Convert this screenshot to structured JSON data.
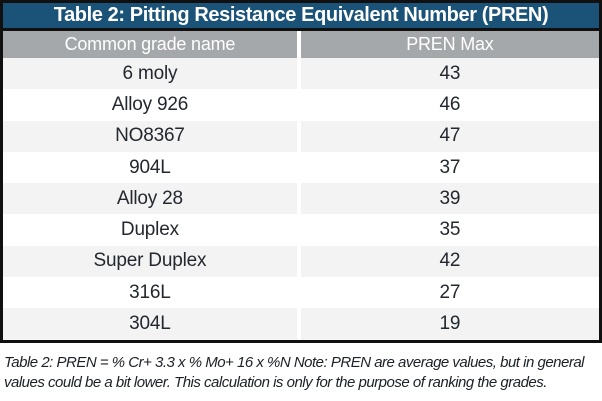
{
  "table": {
    "title": "Table 2: Pitting Resistance Equivalent Number (PREN)",
    "columns": [
      "Common grade name",
      "PREN Max"
    ],
    "rows": [
      {
        "grade": "6 moly",
        "pren_max": "43"
      },
      {
        "grade": "Alloy 926",
        "pren_max": "46"
      },
      {
        "grade": "NO8367",
        "pren_max": "47"
      },
      {
        "grade": "904L",
        "pren_max": "37"
      },
      {
        "grade": "Alloy 28",
        "pren_max": "39"
      },
      {
        "grade": "Duplex",
        "pren_max": "35"
      },
      {
        "grade": "Super Duplex",
        "pren_max": "42"
      },
      {
        "grade": "316L",
        "pren_max": "27"
      },
      {
        "grade": "304L",
        "pren_max": "19"
      }
    ]
  },
  "caption": {
    "lines": [
      "Table 2: PREN = % Cr+ 3.3 x % Mo+ 16 x %N  Note: PREN are average values, but in general",
      "values could be a bit lower. This calculation is only for the purpose of ranking the grades."
    ]
  },
  "colors": {
    "title_bar_bg": "#1A5278",
    "header_row_bg": "#A5A8AB",
    "alt_row_bg": "#F3F3F3",
    "row_bg": "#FFFFFF",
    "border": "#101010",
    "title_text": "#FFFFFF",
    "header_text": "#FFFFFF",
    "body_text": "#23282F",
    "caption_text": "#1C2127"
  },
  "chart_data": {
    "type": "table",
    "title": "Table 2: Pitting Resistance Equivalent Number (PREN)",
    "columns": [
      "Common grade name",
      "PREN Max"
    ],
    "rows": [
      [
        "6 moly",
        43
      ],
      [
        "Alloy 926",
        46
      ],
      [
        "NO8367",
        47
      ],
      [
        "904L",
        37
      ],
      [
        "Alloy 28",
        39
      ],
      [
        "Duplex",
        35
      ],
      [
        "Super Duplex",
        42
      ],
      [
        "316L",
        27
      ],
      [
        "304L",
        19
      ]
    ]
  }
}
